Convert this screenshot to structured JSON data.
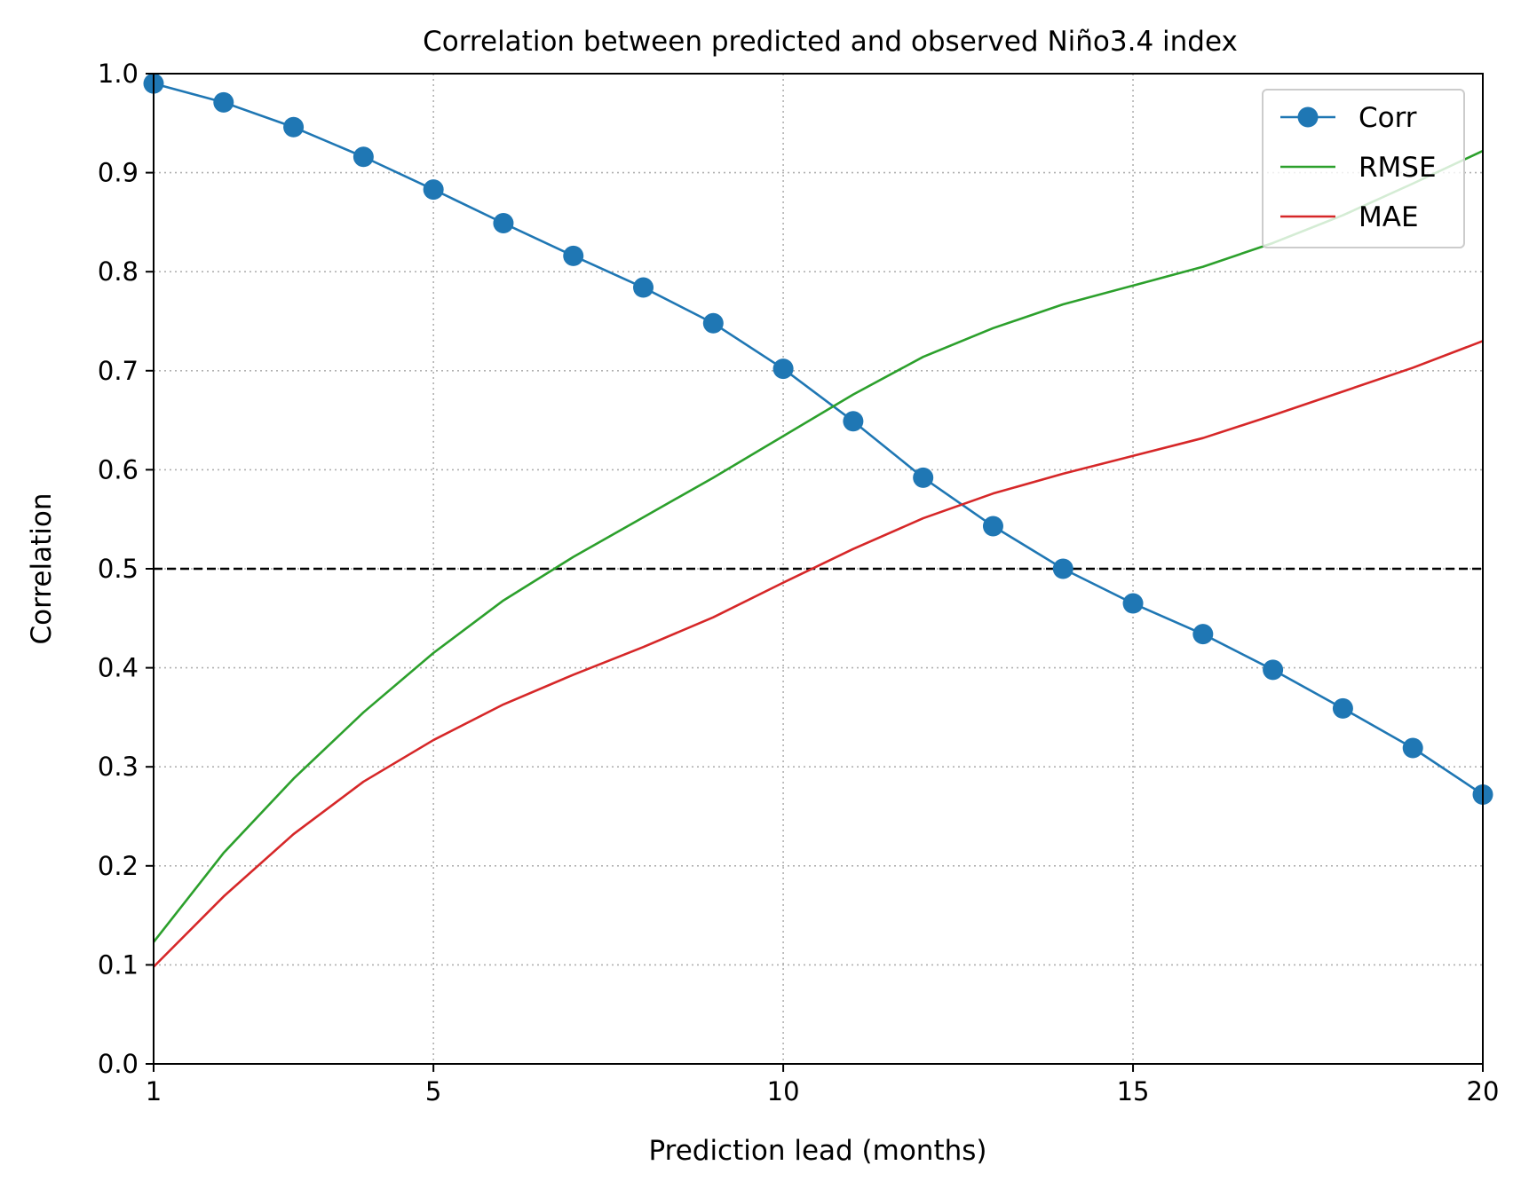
{
  "chart_data": {
    "type": "line",
    "title": "Correlation between predicted and observed Niño3.4 index",
    "xlabel": "Prediction lead (months)",
    "ylabel": "Correlation",
    "xlim": [
      1,
      20
    ],
    "ylim": [
      0.0,
      1.0
    ],
    "xticks": [
      1,
      5,
      10,
      15,
      20
    ],
    "yticks": [
      0.0,
      0.1,
      0.2,
      0.3,
      0.4,
      0.5,
      0.6,
      0.7,
      0.8,
      0.9,
      1.0
    ],
    "xtick_labels": [
      "1",
      "5",
      "10",
      "15",
      "20"
    ],
    "ytick_labels": [
      "0.0",
      "0.1",
      "0.2",
      "0.3",
      "0.4",
      "0.5",
      "0.6",
      "0.7",
      "0.8",
      "0.9",
      "1.0"
    ],
    "grid": true,
    "legend_position": "top-right",
    "reference_line": {
      "y": 0.5,
      "style": "dashed",
      "color": "#000000"
    },
    "x": [
      1,
      2,
      3,
      4,
      5,
      6,
      7,
      8,
      9,
      10,
      11,
      12,
      13,
      14,
      15,
      16,
      17,
      18,
      19,
      20
    ],
    "series": [
      {
        "name": "Corr",
        "color": "#1f77b4",
        "marker": "circle",
        "values": [
          0.99,
          0.971,
          0.946,
          0.916,
          0.883,
          0.849,
          0.816,
          0.784,
          0.748,
          0.702,
          0.649,
          0.592,
          0.543,
          0.5,
          0.465,
          0.434,
          0.398,
          0.359,
          0.319,
          0.272
        ]
      },
      {
        "name": "RMSE",
        "color": "#2ca02c",
        "marker": "none",
        "values": [
          0.123,
          0.213,
          0.288,
          0.355,
          0.415,
          0.468,
          0.512,
          0.552,
          0.592,
          0.634,
          0.676,
          0.714,
          0.743,
          0.767,
          0.786,
          0.805,
          0.829,
          0.857,
          0.889,
          0.922
        ]
      },
      {
        "name": "MAE",
        "color": "#d62728",
        "marker": "none",
        "values": [
          0.098,
          0.169,
          0.232,
          0.285,
          0.327,
          0.363,
          0.393,
          0.421,
          0.451,
          0.486,
          0.52,
          0.551,
          0.576,
          0.596,
          0.614,
          0.632,
          0.655,
          0.679,
          0.703,
          0.73
        ]
      }
    ]
  }
}
